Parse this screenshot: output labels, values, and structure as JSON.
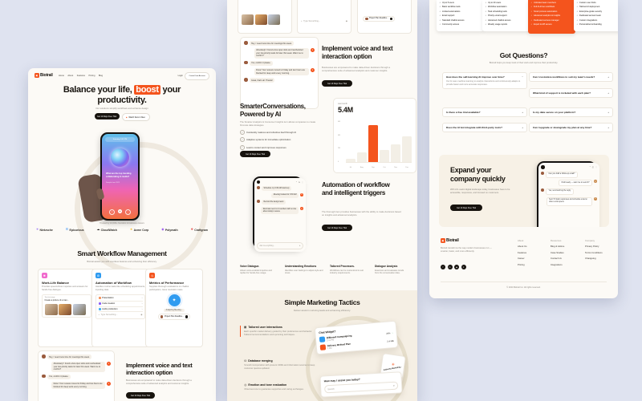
{
  "page": {
    "background": "#dfe3f0",
    "accent": "#f4541d",
    "panel_bg": "#fcfaf6",
    "beige": "#f5efe4",
    "dark": "#17130e"
  },
  "brand": {
    "name": "Biotrail"
  },
  "ui": {
    "check": "✓",
    "plus": "+",
    "minus": "−",
    "chev": "›",
    "play": "▶",
    "spark": "✦",
    "send": "➤",
    "arrow_up": "↑",
    "dots": "⋮",
    "logo_glyph": "▣",
    "add": "+",
    "refresh": "⟳",
    "back": "‹",
    "mic": "◉",
    "asterisk": "✳",
    "close": "✕",
    "camera": "◫"
  },
  "left": {
    "nav": [
      "Home",
      "About",
      "Features",
      "Pricing",
      "Blog"
    ],
    "login": "Login",
    "signup": "Create Free Account",
    "hero": {
      "title_pre": "Balance your life,",
      "title_highlight": "boost",
      "title_post": "your",
      "title_line2": "productivity.",
      "subtitle": "Our solutions simplify workflows and enhance design",
      "primary_cta": "Get 14 Days Free Trial",
      "secondary_cta": "Watch Demo Video"
    },
    "phone": {
      "status": "Saturday 3:45 PM",
      "prompt": "What are the top trending collaborating in media?",
      "caption": "Sample from 2025"
    },
    "trusted": "Trusted by 10,000+ founders & business owners",
    "logos": [
      {
        "name": "Nietzsche",
        "glyph": "✳",
        "color": "#7b4bf5"
      },
      {
        "name": "Epicurious",
        "glyph": "☰",
        "color": "#2e8bf7"
      },
      {
        "name": "CloudWatch",
        "glyph": "☁",
        "color": "#1b1917"
      },
      {
        "name": "Acme Corp",
        "glyph": "★",
        "color": "#f5b91e"
      },
      {
        "name": "Polymath",
        "glyph": "◉",
        "color": "#8a3bf0"
      },
      {
        "name": "Craftgram",
        "glyph": "❖",
        "color": "#e23b3b"
      }
    ],
    "features": {
      "title": "Smart Workflow Management",
      "subtitle": "Biotrail assists you with countless features and enhancing their efficiency."
    },
    "cards": [
      {
        "title": "Work-Life Balance",
        "desc": "Provides speed-driven inquiries and answers for hands-free dialogue.",
        "icon_glyph": "✺",
        "icon_color": "#f06acd",
        "label": "Text to image",
        "input": "Create a picture of a man..."
      },
      {
        "title": "Automation of Workflow",
        "desc": "Handles routine tasks like scheduling appointments, inputting data.",
        "icon_glyph": "⚙",
        "icon_color": "#2f9bf0",
        "rows": [
          {
            "t": "Presentation",
            "color": "#f4925a"
          },
          {
            "t": "Code creation",
            "color": "#8a5cf6"
          },
          {
            "t": "Audio production",
            "color": "#3fb2f2"
          }
        ],
        "input": "Type Something..."
      },
      {
        "title": "Metrics of Performance",
        "desc": "Supplies thorough evaluations on chatbot participation, issue resolution rates.",
        "icon_glyph": "◷",
        "icon_color": "#f4541d",
        "pill1": "Analyzing Meeting...",
        "pill2": "Project Plan Deadline..."
      }
    ]
  },
  "voice": {
    "heading": "Implement voice and text interaction option",
    "desc": "Businesses are empowered to make data-driven decisions through a comprehensive suite of advanced analytics and customer insights.",
    "cta": "Get 14 Days Free Trial"
  },
  "chat": {
    "messages": [
      {
        "side": "user",
        "text": "Hey, I need more time for meetings this week."
      },
      {
        "side": "ai",
        "text": "Absolutely! I found a few open slots and rescheduled your low-priority tasks for later this week. Want me to confirm?"
      },
      {
        "side": "user",
        "text": "Yes, confirm it please."
      },
      {
        "side": "ai",
        "text": "Done! Your reviews moved to Friday and two hours are blocked for deep work every morning."
      },
      {
        "side": "user",
        "text": "Great, that's all. Thanks!"
      }
    ]
  },
  "middle": {
    "analytics": {
      "heading_line1": "SmarterConversations,",
      "heading_line2": "Powered by AI",
      "desc": "The Smarter Analytics & Consumer Insights turn allows companies to create first-rate data strategies.",
      "checklist": [
        "Constantly matures and refreshes itself through AI",
        "Adaptive systems for immediate optimization",
        "Learns context and improves responses"
      ],
      "cta": "Get 14 Days Free Trial",
      "chart": {
        "type": "bar",
        "label": "Last month",
        "value": "5.4M",
        "months": [
          "Jul",
          "Aug",
          "Sep",
          "Oct",
          "Nov",
          "Dec"
        ],
        "values": [
          0.4,
          1.4,
          5.4,
          1.8,
          2.6,
          3.8
        ],
        "ymax": 6,
        "highlight_index": 2,
        "yticks": [
          "6M",
          "4M",
          "2M",
          "0"
        ],
        "bar_color": "#f3efe6",
        "highlight_color": "#f4541d"
      }
    },
    "automation": {
      "heading": "Automation of workflow and intelligent triggers",
      "desc": "The thorough item provides businesses with the ability to make decisions based on insights and advanced analytics.",
      "cta": "Get 14 Days Free Trial",
      "phone": {
        "time": "9:41",
        "messages": [
          {
            "side": "user",
            "text": "Schedule my 9:30 AM stand-up"
          },
          {
            "side": "ai",
            "text": "Meeting booked for 9:30 AM"
          },
          {
            "side": "user",
            "text": "Remind the design team"
          },
          {
            "side": "ai",
            "text": "Reminder sent to 4 members with a note about today's review."
          }
        ],
        "input": "Ask me anything..."
      }
    },
    "mini_features": [
      {
        "title": "Voice Dialogue.",
        "desc": "Allows voice-enabled inquiries and replies for hands-free usage."
      },
      {
        "title": "Understanding Emotions",
        "desc": "Identifies user feelings to adjust style and tones."
      },
      {
        "title": "Tailored Processes.",
        "desc": "Workflows can be customized to suit industry requirements."
      },
      {
        "title": "Dialogue Analysis",
        "desc": "Examines and evaluates trends from the conversation data."
      }
    ],
    "marketing": {
      "title": "Simple Marketing Tactics",
      "subtitle": "Deliver assist in nurturing leads and enhancing efficiency.",
      "accordion": [
        {
          "glyph": "▦",
          "title": "Tailored user interactions",
          "desc": "Each specific market delivery guided by their preferences and behavior. Tailored recommendations and upcoming techniques."
        },
        {
          "glyph": "⛁",
          "title": "Database merging",
          "desc": "Smooth incorporation with present CRMs and information sources to keep customer queries updated."
        },
        {
          "glyph": "◎",
          "title": "Emotion and tone evaluation",
          "desc": "Observes tone to guarantee supportive and caring exchanges."
        }
      ],
      "widget_card": {
        "title": "Chat Widget?",
        "rows": [
          {
            "name": "Billboard Campaigning",
            "sub": "2:41 PM",
            "value": "24%",
            "color": "#2f9bf0"
          },
          {
            "name": "Delivery Method Plan",
            "sub": "1 PM",
            "value": "2.4 MB",
            "color": "#f4541d"
          }
        ]
      },
      "sticker": "Authority Marketing...",
      "assist_card": {
        "title": "How may I assist you today?",
        "placeholder": "Search"
      }
    }
  },
  "right": {
    "pricing": [
      {
        "items": [
          "Up to 5 users",
          "Basic workflow tools",
          "Limited automations",
          "Email support",
          "Standard chatbot access",
          "Community access"
        ]
      },
      {
        "items": [
          "Up to 20 users",
          "Workflow automation",
          "Task scheduling tools",
          "Priority email support",
          "Advanced chatbot access",
          "Weekly usage reports"
        ]
      },
      {
        "items": [
          "Unlimited team members",
          "Full AI-driven workflows",
          "Smart process automation",
          "Advanced analytics & insights",
          "Dedicated success manager",
          "Export & API access"
        ]
      },
      {
        "items": [
          "Custom user limits",
          "Tailored AI deployment",
          "Enterprise-grade security",
          "Dedicated account team",
          "Custom integrations",
          "Personalized onboarding"
        ]
      }
    ],
    "faq": {
      "title": "Got Questions?",
      "subtitle": "Biotrail helps you keep track of their work and improve their productivity.",
      "left": [
        {
          "q": "How does the self-learning AI improve over time?",
          "a": "Our AI uses machine learning to analyze interactions and continuously adapts to provide faster and more accurate responses."
        },
        {
          "q": "Is there a free trial available?"
        },
        {
          "q": "Does the AI bot integrate with third-party tools?"
        }
      ],
      "right": [
        {
          "q": "Can I customize workflows to suit my team's needs?"
        },
        {
          "q": "What kind of support is included with each plan?"
        },
        {
          "q": "Is my data secure on your platform?"
        },
        {
          "q": "Can I upgrade or downgrade my plan at any time?"
        }
      ]
    },
    "cta": {
      "heading_line1": "Expand your",
      "heading_line2": "company quickly",
      "desc": "With AI's useful digital landscape today, businesses have to be accessible, responsive, and focused on customers.",
      "button": "Get 14 Days Free Trial",
      "phone_messages": [
        {
          "side": "user",
          "text": "Can you draft a follow-up email?"
        },
        {
          "side": "ai",
          "text": "Draft ready — want me to send it?"
        },
        {
          "side": "user",
          "text": "Yes, send and log the reply."
        },
        {
          "side": "ai",
          "text": "Sent! I'll track responses and schedule a demo when a slot opens."
        }
      ]
    },
    "footer": {
      "tagline": "Biotrail transforms the way modern businesses run — smarter, faster, and more efficiently.",
      "columns": [
        {
          "header": "About",
          "links": [
            "About Us",
            "Features",
            "Career",
            "Pricing"
          ]
        },
        {
          "header": "Resources",
          "links": [
            "Blog & Advice",
            "Case Studies",
            "Contact Us",
            "Integrations"
          ]
        },
        {
          "header": "Company",
          "links": [
            "Privacy Policy",
            "Terms Conditions",
            "Changelog"
          ]
        }
      ],
      "socials": [
        "f",
        "in",
        "◉",
        "✕"
      ],
      "copyright": "© 2024 Biotrail Inc. All rights reserved."
    }
  }
}
